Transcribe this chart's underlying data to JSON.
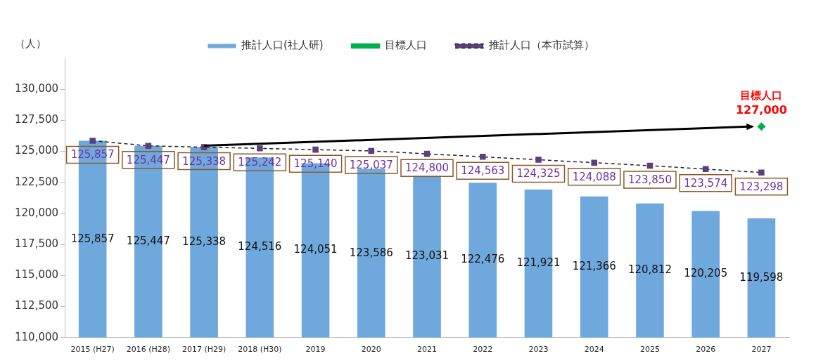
{
  "chart_data": {
    "type": "bar",
    "ylabel": "（人）",
    "categories": [
      "2015 (H27)",
      "2016 (H28)",
      "2017 (H29)",
      "2018 (H30)",
      "2019",
      "2020",
      "2021",
      "2022",
      "2023",
      "2024",
      "2025",
      "2026",
      "2027"
    ],
    "ylim": [
      110000,
      132500
    ],
    "yticks": [
      {
        "value": 110000,
        "label": "110,000"
      },
      {
        "value": 112500,
        "label": "112,500"
      },
      {
        "value": 115000,
        "label": "115,000"
      },
      {
        "value": 117500,
        "label": "117,500"
      },
      {
        "value": 120000,
        "label": "120,000"
      },
      {
        "value": 122500,
        "label": "122,500"
      },
      {
        "value": 125000,
        "label": "125,000"
      },
      {
        "value": 127500,
        "label": "127,500"
      },
      {
        "value": 130000,
        "label": "130,000"
      }
    ],
    "legend": "top",
    "series": [
      {
        "name": "推計人口(社人研)",
        "color": "#6fa8dc",
        "values": [
          125857,
          125447,
          125338,
          124516,
          124051,
          123586,
          123031,
          122476,
          121921,
          121366,
          120812,
          120205,
          119598
        ],
        "value_labels": [
          "125,857",
          "125,447",
          "125,338",
          "124,516",
          "124,051",
          "123,586",
          "123,031",
          "122,476",
          "121,921",
          "121,366",
          "120,812",
          "120,205",
          "119,598"
        ]
      },
      {
        "name": "目標人口",
        "type": "line",
        "color": "#00b050",
        "marker": "diamond",
        "line_style": "solid",
        "values": [
          null,
          null,
          null,
          null,
          null,
          null,
          null,
          null,
          null,
          null,
          null,
          null,
          127000
        ],
        "value_labels": [
          null,
          null,
          null,
          null,
          null,
          null,
          null,
          null,
          null,
          null,
          null,
          null,
          "127,000"
        ]
      },
      {
        "name": "推計人口（本市試算）",
        "type": "line",
        "color": "#5b3f7f",
        "marker": "square",
        "line_style": "dashed",
        "values": [
          125857,
          125447,
          125338,
          125242,
          125140,
          125037,
          124800,
          124563,
          124325,
          124088,
          123850,
          123574,
          123298
        ],
        "value_labels": [
          "125,857",
          "125,447",
          "125,338",
          "125,242",
          "125,140",
          "125,037",
          "124,800",
          "124,563",
          "124,325",
          "124,088",
          "123,850",
          "123,574",
          "123,298"
        ]
      }
    ],
    "annotations": [
      {
        "text": "目標人口",
        "x": "2027",
        "y": 127000
      }
    ]
  }
}
